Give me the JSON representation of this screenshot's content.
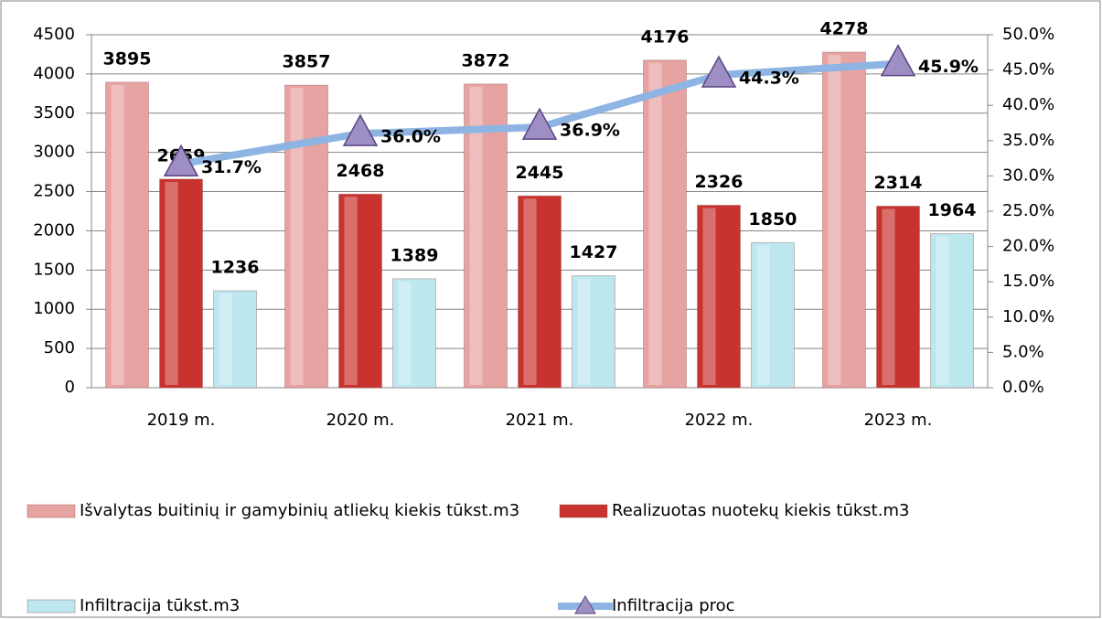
{
  "chart_data": {
    "type": "bar",
    "categories": [
      "2019 m.",
      "2020 m.",
      "2021 m.",
      "2022 m.",
      "2023 m."
    ],
    "series": [
      {
        "name": "Išvalytas buitinių ir gamybinių atliekų kiekis tūkst.m3",
        "type": "bar",
        "color": "#e6a3a1",
        "values": [
          3895,
          3857,
          3872,
          4176,
          4278
        ]
      },
      {
        "name": "Realizuotas nuotekų kiekis tūkst.m3",
        "type": "bar",
        "color": "#c9332f",
        "values": [
          2659,
          2468,
          2445,
          2326,
          2314
        ]
      },
      {
        "name": "Infiltracija tūkst.m3",
        "type": "bar",
        "color": "#bde7ef",
        "values": [
          1236,
          1389,
          1427,
          1850,
          1964
        ]
      },
      {
        "name": "Infiltracija proc",
        "type": "line",
        "axis": "y2",
        "color": "#8eb4e3",
        "marker_color": "#9d8ec4",
        "values": [
          31.7,
          36.0,
          36.9,
          44.3,
          45.9
        ],
        "value_labels": [
          "31.7%",
          "36.0%",
          "36.9%",
          "44.3%",
          "45.9%"
        ]
      }
    ],
    "ylim": [
      0,
      4500
    ],
    "yticks": [
      0,
      500,
      1000,
      1500,
      2000,
      2500,
      3000,
      3500,
      4000,
      4500
    ],
    "y2lim": [
      0,
      50
    ],
    "y2ticks": [
      {
        "value": 0,
        "label": "0.0%"
      },
      {
        "value": 5,
        "label": "5.0%"
      },
      {
        "value": 10,
        "label": "10.0%"
      },
      {
        "value": 15,
        "label": "15.0%"
      },
      {
        "value": 20,
        "label": "20.0%"
      },
      {
        "value": 25,
        "label": "25.0%"
      },
      {
        "value": 30,
        "label": "30.0%"
      },
      {
        "value": 35,
        "label": "35.0%"
      },
      {
        "value": 40,
        "label": "40.0%"
      },
      {
        "value": 45,
        "label": "45.0%"
      },
      {
        "value": 50,
        "label": "50.0%"
      }
    ],
    "grid": true,
    "legend": "bottom"
  }
}
